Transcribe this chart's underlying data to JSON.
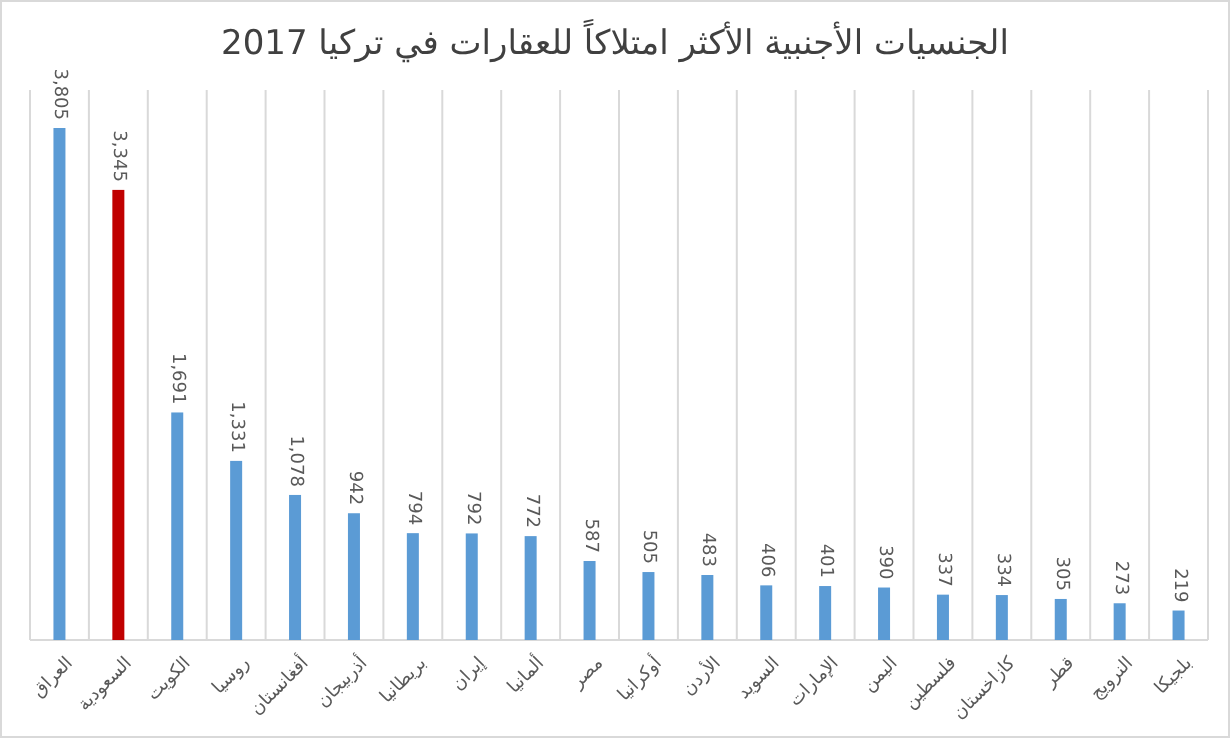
{
  "chart_data": {
    "type": "bar",
    "title": "الجنسيات الأجنبية الأكثر امتلاكاً للعقارات في تركيا 2017",
    "categories": [
      "العراق",
      "السعودية",
      "الكويت",
      "روسيا",
      "أفغانستان",
      "أذربيجان",
      "بريطانيا",
      "إيران",
      "ألمانيا",
      "مصر",
      "أوكرانيا",
      "الأردن",
      "السويد",
      "الإمارات",
      "اليمن",
      "فلسطين",
      "كازاخستان",
      "قطر",
      "النرويج",
      "بلجيكا"
    ],
    "values": [
      3805,
      3345,
      1691,
      1331,
      1078,
      942,
      794,
      792,
      772,
      587,
      505,
      483,
      406,
      401,
      390,
      337,
      334,
      305,
      273,
      219
    ],
    "value_labels": [
      "3,805",
      "3,345",
      "1,691",
      "1,331",
      "1,078",
      "942",
      "794",
      "792",
      "772",
      "587",
      "505",
      "483",
      "406",
      "401",
      "390",
      "337",
      "334",
      "305",
      "273",
      "219"
    ],
    "colors": [
      "#5b9bd5",
      "#c00000",
      "#5b9bd5",
      "#5b9bd5",
      "#5b9bd5",
      "#5b9bd5",
      "#5b9bd5",
      "#5b9bd5",
      "#5b9bd5",
      "#5b9bd5",
      "#5b9bd5",
      "#5b9bd5",
      "#5b9bd5",
      "#5b9bd5",
      "#5b9bd5",
      "#5b9bd5",
      "#5b9bd5",
      "#5b9bd5",
      "#5b9bd5",
      "#5b9bd5"
    ],
    "grid": "x"
  }
}
